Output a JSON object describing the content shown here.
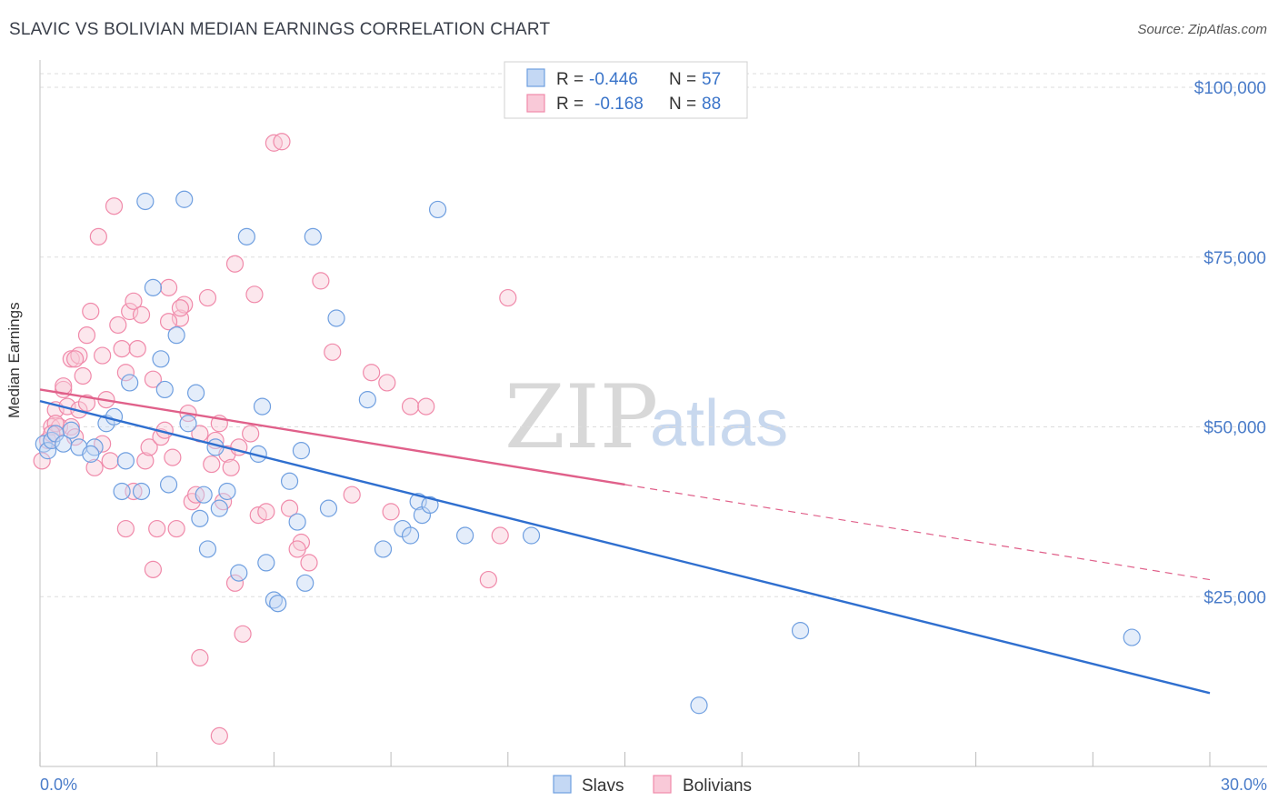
{
  "header": {
    "title": "SLAVIC VS BOLIVIAN MEDIAN EARNINGS CORRELATION CHART",
    "source": "Source: ZipAtlas.com"
  },
  "watermark": {
    "zip": "ZIP",
    "atlas": "atlas"
  },
  "legend": {
    "rows": [
      {
        "r_label": "R =",
        "r_value": "-0.446",
        "n_label": "N =",
        "n_value": "57",
        "color": "#6f9fe0"
      },
      {
        "r_label": "R =",
        "r_value": "-0.168",
        "n_label": "N =",
        "n_value": "88",
        "color": "#f08aaa"
      }
    ]
  },
  "bottom_legend": {
    "slavs": "Slavs",
    "bolivians": "Bolivians"
  },
  "chart_data": {
    "type": "scatter",
    "title": "SLAVIC VS BOLIVIAN MEDIAN EARNINGS CORRELATION CHART",
    "ylabel": "Median Earnings",
    "xlabel": "",
    "xlim": [
      0,
      30
    ],
    "ylim": [
      0,
      105000
    ],
    "x_tick_labels": [
      "0.0%",
      "30.0%"
    ],
    "y_ticks": [
      25000,
      50000,
      75000,
      100000
    ],
    "y_tick_labels": [
      "$25,000",
      "$50,000",
      "$75,000",
      "$100,000"
    ],
    "grid": true,
    "series": [
      {
        "name": "Slavs",
        "color": "#6f9fe0",
        "line_color": "#2f6fcf",
        "trend": {
          "x": [
            0,
            30
          ],
          "y": [
            53800,
            10800
          ]
        },
        "points": [
          [
            0.1,
            47500
          ],
          [
            0.2,
            46500
          ],
          [
            0.3,
            48000
          ],
          [
            0.4,
            49000
          ],
          [
            0.6,
            47500
          ],
          [
            0.8,
            49500
          ],
          [
            1.0,
            47000
          ],
          [
            1.4,
            47000
          ],
          [
            1.3,
            46000
          ],
          [
            1.7,
            50500
          ],
          [
            1.9,
            51500
          ],
          [
            2.2,
            45000
          ],
          [
            2.3,
            56500
          ],
          [
            2.6,
            40500
          ],
          [
            2.7,
            83200
          ],
          [
            2.9,
            70500
          ],
          [
            3.1,
            60000
          ],
          [
            3.2,
            55500
          ],
          [
            3.3,
            41500
          ],
          [
            3.5,
            63500
          ],
          [
            3.7,
            83500
          ],
          [
            3.8,
            50500
          ],
          [
            4.0,
            55000
          ],
          [
            4.1,
            36500
          ],
          [
            4.2,
            40000
          ],
          [
            4.3,
            32000
          ],
          [
            4.5,
            47000
          ],
          [
            4.6,
            38000
          ],
          [
            4.8,
            40500
          ],
          [
            5.1,
            28500
          ],
          [
            5.3,
            78000
          ],
          [
            5.6,
            46000
          ],
          [
            5.7,
            53000
          ],
          [
            5.8,
            30000
          ],
          [
            6.0,
            24500
          ],
          [
            6.1,
            24000
          ],
          [
            6.4,
            42000
          ],
          [
            6.6,
            36000
          ],
          [
            6.8,
            27000
          ],
          [
            6.7,
            46500
          ],
          [
            7.0,
            78000
          ],
          [
            7.4,
            38000
          ],
          [
            7.6,
            66000
          ],
          [
            8.4,
            54000
          ],
          [
            8.8,
            32000
          ],
          [
            9.3,
            35000
          ],
          [
            9.5,
            34000
          ],
          [
            9.7,
            39000
          ],
          [
            9.8,
            37000
          ],
          [
            10.0,
            38500
          ],
          [
            10.2,
            82000
          ],
          [
            10.9,
            34000
          ],
          [
            2.1,
            40500
          ],
          [
            12.6,
            34000
          ],
          [
            16.9,
            9000
          ],
          [
            19.5,
            20000
          ],
          [
            28.0,
            19000
          ]
        ]
      },
      {
        "name": "Bolivians",
        "color": "#f08aaa",
        "line_color": "#e0608a",
        "trend": {
          "x": [
            0,
            15
          ],
          "y": [
            55500,
            41500
          ]
        },
        "trend_extension": {
          "x": [
            15,
            30
          ],
          "y": [
            41500,
            27500
          ]
        },
        "points": [
          [
            0.05,
            45000
          ],
          [
            0.2,
            48000
          ],
          [
            0.3,
            50000
          ],
          [
            0.4,
            52500
          ],
          [
            0.5,
            50000
          ],
          [
            0.6,
            55500
          ],
          [
            0.7,
            53000
          ],
          [
            0.8,
            50000
          ],
          [
            0.9,
            48500
          ],
          [
            0.8,
            60000
          ],
          [
            1.0,
            60500
          ],
          [
            1.1,
            57500
          ],
          [
            1.2,
            63500
          ],
          [
            1.3,
            67000
          ],
          [
            1.5,
            78000
          ],
          [
            1.6,
            60500
          ],
          [
            1.7,
            54000
          ],
          [
            1.8,
            45000
          ],
          [
            1.9,
            82500
          ],
          [
            2.0,
            65000
          ],
          [
            2.1,
            61500
          ],
          [
            2.2,
            58000
          ],
          [
            2.3,
            67000
          ],
          [
            2.4,
            68500
          ],
          [
            2.5,
            61500
          ],
          [
            2.6,
            66500
          ],
          [
            2.7,
            45000
          ],
          [
            2.8,
            47000
          ],
          [
            2.9,
            29000
          ],
          [
            3.0,
            35000
          ],
          [
            3.1,
            48500
          ],
          [
            3.2,
            49500
          ],
          [
            3.3,
            70500
          ],
          [
            3.4,
            45500
          ],
          [
            3.5,
            35000
          ],
          [
            3.6,
            66000
          ],
          [
            3.7,
            68000
          ],
          [
            3.8,
            52000
          ],
          [
            3.9,
            39000
          ],
          [
            4.0,
            40000
          ],
          [
            4.1,
            16000
          ],
          [
            4.3,
            69000
          ],
          [
            4.4,
            44500
          ],
          [
            4.5,
            48000
          ],
          [
            4.6,
            50500
          ],
          [
            4.7,
            39000
          ],
          [
            4.8,
            46000
          ],
          [
            4.9,
            44000
          ],
          [
            5.0,
            74000
          ],
          [
            5.1,
            47000
          ],
          [
            5.2,
            19500
          ],
          [
            5.4,
            49000
          ],
          [
            5.5,
            69500
          ],
          [
            5.6,
            37000
          ],
          [
            5.8,
            37500
          ],
          [
            6.0,
            91800
          ],
          [
            6.2,
            92000
          ],
          [
            6.4,
            38000
          ],
          [
            6.7,
            33000
          ],
          [
            6.9,
            30000
          ],
          [
            7.2,
            71500
          ],
          [
            7.5,
            61000
          ],
          [
            8.0,
            40000
          ],
          [
            8.5,
            58000
          ],
          [
            8.9,
            56500
          ],
          [
            9.0,
            37500
          ],
          [
            9.5,
            53000
          ],
          [
            11.5,
            27500
          ],
          [
            11.8,
            34000
          ],
          [
            12.0,
            69000
          ],
          [
            0.4,
            50500
          ],
          [
            0.6,
            56000
          ],
          [
            1.0,
            52500
          ],
          [
            1.4,
            44000
          ],
          [
            2.4,
            40500
          ],
          [
            3.3,
            65500
          ],
          [
            4.6,
            4500
          ],
          [
            5.0,
            27000
          ],
          [
            1.2,
            53500
          ],
          [
            1.6,
            47500
          ],
          [
            2.9,
            57000
          ],
          [
            3.6,
            67500
          ],
          [
            4.1,
            49000
          ],
          [
            6.6,
            32000
          ],
          [
            9.9,
            53000
          ],
          [
            0.3,
            49000
          ],
          [
            0.9,
            60000
          ],
          [
            2.2,
            35000
          ]
        ]
      }
    ]
  }
}
